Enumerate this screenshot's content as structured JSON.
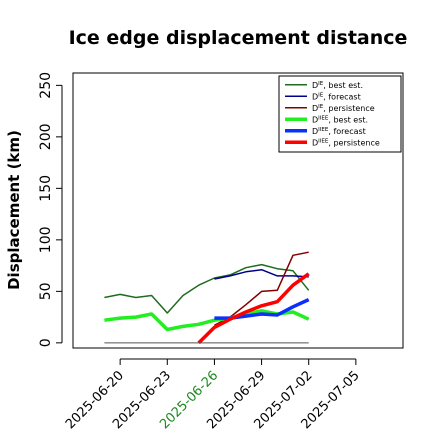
{
  "chart_data": {
    "type": "line",
    "title": "Ice edge displacement distance",
    "xlabel": "",
    "ylabel": "Displacement (km)",
    "xlim": [
      "2025-06-17",
      "2025-07-08"
    ],
    "ylim": [
      -5,
      262
    ],
    "yticks": [
      0,
      50,
      100,
      150,
      200,
      250
    ],
    "xticks": [
      {
        "date": "2025-06-20",
        "label": "2025-06-20",
        "color": "#000000"
      },
      {
        "date": "2025-06-23",
        "label": "2025-06-23",
        "color": "#000000"
      },
      {
        "date": "2025-06-26",
        "label": "2025-06-26",
        "color": "#1a8a1a"
      },
      {
        "date": "2025-06-29",
        "label": "2025-06-29",
        "color": "#000000"
      },
      {
        "date": "2025-07-02",
        "label": "2025-07-02",
        "color": "#000000"
      },
      {
        "date": "2025-07-05",
        "label": "2025-07-05",
        "color": "#000000"
      }
    ],
    "legend_position": "top-right",
    "series": [
      {
        "name": "D^IE, best est.",
        "name_main": "D",
        "name_sup": "IE",
        "name_rest": ", best est.",
        "color": "#1f6b1f",
        "width": 1.5,
        "x": [
          "2025-06-19",
          "2025-06-20",
          "2025-06-21",
          "2025-06-22",
          "2025-06-23",
          "2025-06-24",
          "2025-06-25",
          "2025-06-26",
          "2025-06-27",
          "2025-06-28",
          "2025-06-29",
          "2025-06-30",
          "2025-07-01",
          "2025-07-02"
        ],
        "y": [
          44,
          47,
          44,
          46,
          29,
          46,
          56,
          63,
          66,
          73,
          76,
          72,
          70,
          51
        ]
      },
      {
        "name": "D^IE, forecast",
        "name_main": "D",
        "name_sup": "IE",
        "name_rest": ", forecast",
        "color": "#00008b",
        "width": 1.5,
        "x": [
          "2025-06-26",
          "2025-06-27",
          "2025-06-28",
          "2025-06-29",
          "2025-06-30",
          "2025-07-01",
          "2025-07-02"
        ],
        "y": [
          62,
          65,
          69,
          71,
          65,
          65,
          64
        ]
      },
      {
        "name": "D^IE, persistence",
        "name_main": "D",
        "name_sup": "IE",
        "name_rest": ", persistence",
        "color": "#800000",
        "width": 1.5,
        "x": [
          "2025-06-26",
          "2025-06-27",
          "2025-06-28",
          "2025-06-29",
          "2025-06-30",
          "2025-07-01",
          "2025-07-02"
        ],
        "y": [
          17,
          25,
          37,
          50,
          51,
          85,
          88
        ]
      },
      {
        "name": "D^IIEE, best est.",
        "name_main": "D",
        "name_sup": "IIEE",
        "name_rest": ", best est.",
        "color": "#22ee22",
        "width": 3.5,
        "x": [
          "2025-06-19",
          "2025-06-20",
          "2025-06-21",
          "2025-06-22",
          "2025-06-23",
          "2025-06-24",
          "2025-06-25",
          "2025-06-26",
          "2025-06-27",
          "2025-06-28",
          "2025-06-29",
          "2025-06-30",
          "2025-07-01",
          "2025-07-02"
        ],
        "y": [
          22,
          24,
          25,
          28,
          13,
          16,
          18,
          22,
          24,
          28,
          31,
          28,
          30,
          23
        ]
      },
      {
        "name": "D^IIEE, forecast",
        "name_main": "D",
        "name_sup": "IIEE",
        "name_rest": ", forecast",
        "color": "#0a2fff",
        "width": 3.5,
        "x": [
          "2025-06-26",
          "2025-06-27",
          "2025-06-28",
          "2025-06-29",
          "2025-06-30",
          "2025-07-01",
          "2025-07-02"
        ],
        "y": [
          24,
          24,
          26,
          28,
          27,
          35,
          42
        ]
      },
      {
        "name": "D^IIEE, persistence",
        "name_main": "D",
        "name_sup": "IIEE",
        "name_rest": ", persistence",
        "color": "#ff0000",
        "width": 3.5,
        "x": [
          "2025-06-25",
          "2025-06-26",
          "2025-06-27",
          "2025-06-28",
          "2025-06-29",
          "2025-06-30",
          "2025-07-01",
          "2025-07-02"
        ],
        "y": [
          0,
          15,
          23,
          30,
          36,
          40,
          56,
          67
        ]
      },
      {
        "name": "",
        "legend": false,
        "color": "#555555",
        "width": 1,
        "x": [
          "2025-06-19",
          "2025-07-02"
        ],
        "y": [
          0,
          0
        ]
      }
    ]
  }
}
